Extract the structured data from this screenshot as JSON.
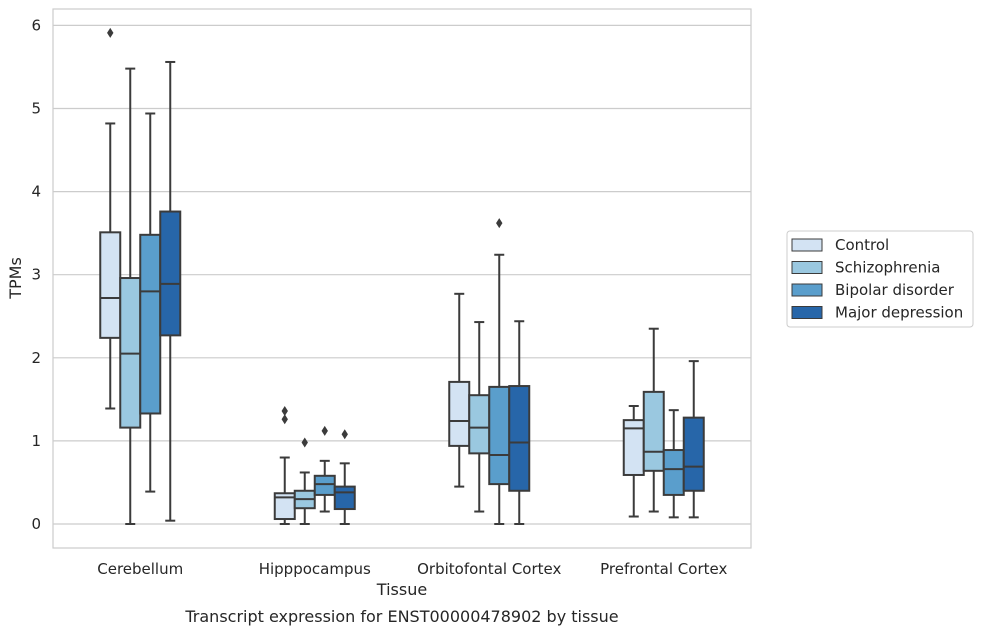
{
  "chart_data": {
    "type": "box",
    "title": "",
    "caption": "Transcript expression for ENST00000478902 by tissue",
    "xlabel": "Tissue",
    "ylabel": "TPMs",
    "ylim": [
      -0.3,
      6.2
    ],
    "yticks": [
      0,
      1,
      2,
      3,
      4,
      5,
      6
    ],
    "grid": "horizontal",
    "legend_position": "right",
    "categories": [
      "Cerebellum",
      "Hipppocampus",
      "Orbitofontal Cortex",
      "Prefrontal Cortex"
    ],
    "series": [
      {
        "name": "Control",
        "color": "#d3e3f3",
        "boxes": [
          {
            "whisker_low": 1.39,
            "q1": 2.24,
            "median": 2.72,
            "q3": 3.51,
            "whisker_high": 4.82,
            "outliers": [
              5.91
            ]
          },
          {
            "whisker_low": 0.0,
            "q1": 0.06,
            "median": 0.32,
            "q3": 0.37,
            "whisker_high": 0.8,
            "outliers": [
              1.26,
              1.36
            ]
          },
          {
            "whisker_low": 0.45,
            "q1": 0.94,
            "median": 1.24,
            "q3": 1.71,
            "whisker_high": 2.77,
            "outliers": []
          },
          {
            "whisker_low": 0.09,
            "q1": 0.59,
            "median": 1.15,
            "q3": 1.25,
            "whisker_high": 1.42,
            "outliers": []
          }
        ]
      },
      {
        "name": "Schizophrenia",
        "color": "#9ac8e0",
        "boxes": [
          {
            "whisker_low": 0.0,
            "q1": 1.16,
            "median": 2.05,
            "q3": 2.96,
            "whisker_high": 5.48,
            "outliers": []
          },
          {
            "whisker_low": 0.0,
            "q1": 0.19,
            "median": 0.3,
            "q3": 0.4,
            "whisker_high": 0.62,
            "outliers": [
              0.98
            ]
          },
          {
            "whisker_low": 0.15,
            "q1": 0.85,
            "median": 1.16,
            "q3": 1.55,
            "whisker_high": 2.43,
            "outliers": []
          },
          {
            "whisker_low": 0.15,
            "q1": 0.64,
            "median": 0.87,
            "q3": 1.59,
            "whisker_high": 2.35,
            "outliers": []
          }
        ]
      },
      {
        "name": "Bipolar disorder",
        "color": "#5a9ecc",
        "boxes": [
          {
            "whisker_low": 0.39,
            "q1": 1.33,
            "median": 2.8,
            "q3": 3.48,
            "whisker_high": 4.94,
            "outliers": []
          },
          {
            "whisker_low": 0.15,
            "q1": 0.35,
            "median": 0.48,
            "q3": 0.58,
            "whisker_high": 0.76,
            "outliers": [
              1.12
            ]
          },
          {
            "whisker_low": 0.0,
            "q1": 0.48,
            "median": 0.83,
            "q3": 1.65,
            "whisker_high": 3.24,
            "outliers": [
              3.62
            ]
          },
          {
            "whisker_low": 0.08,
            "q1": 0.35,
            "median": 0.66,
            "q3": 0.89,
            "whisker_high": 1.37,
            "outliers": []
          }
        ]
      },
      {
        "name": "Major depression",
        "color": "#2766a9",
        "boxes": [
          {
            "whisker_low": 0.04,
            "q1": 2.27,
            "median": 2.89,
            "q3": 3.76,
            "whisker_high": 5.56,
            "outliers": []
          },
          {
            "whisker_low": 0.0,
            "q1": 0.18,
            "median": 0.38,
            "q3": 0.45,
            "whisker_high": 0.73,
            "outliers": [
              1.08
            ]
          },
          {
            "whisker_low": 0.0,
            "q1": 0.4,
            "median": 0.98,
            "q3": 1.66,
            "whisker_high": 2.44,
            "outliers": []
          },
          {
            "whisker_low": 0.08,
            "q1": 0.4,
            "median": 0.69,
            "q3": 1.28,
            "whisker_high": 1.96,
            "outliers": []
          }
        ]
      }
    ]
  }
}
